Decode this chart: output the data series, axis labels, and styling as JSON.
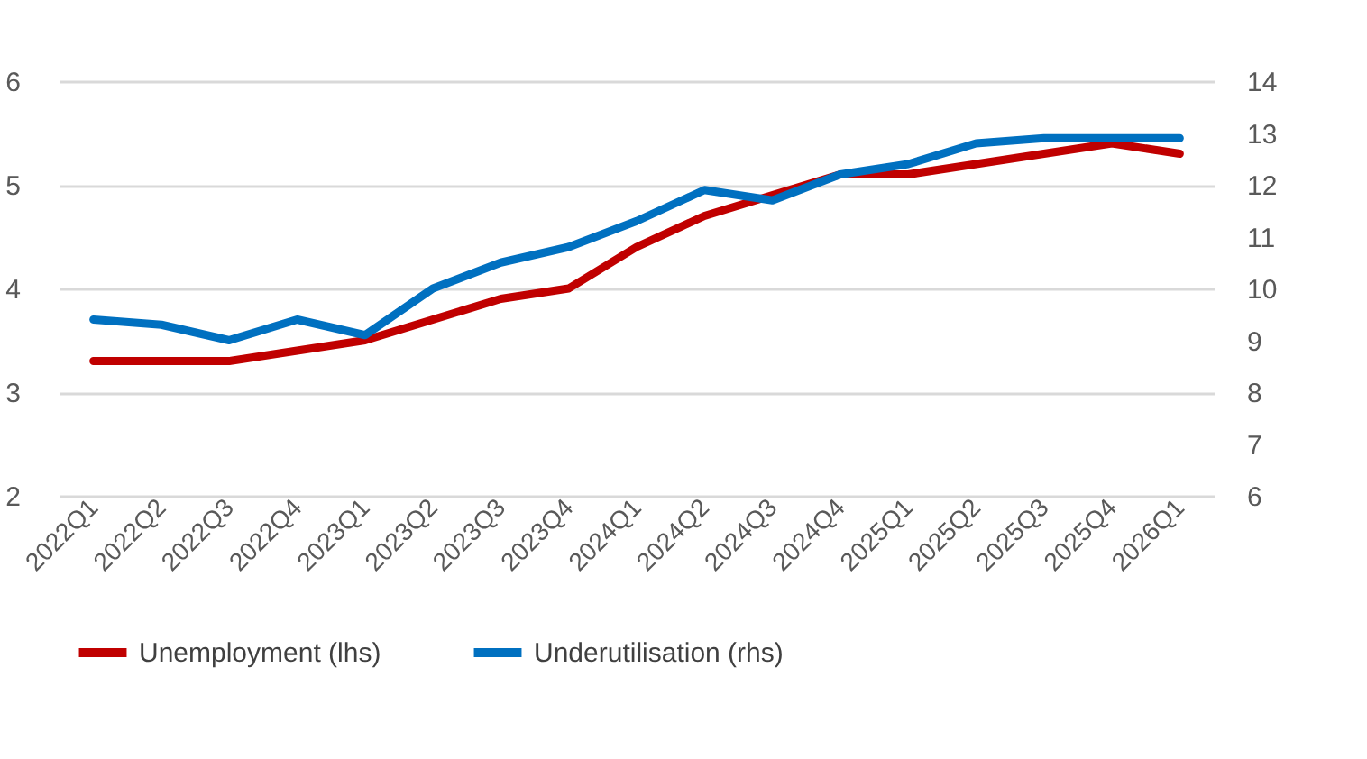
{
  "chart_data": {
    "type": "line",
    "categories": [
      "2022Q1",
      "2022Q2",
      "2022Q3",
      "2022Q4",
      "2023Q1",
      "2023Q2",
      "2023Q3",
      "2023Q4",
      "2024Q1",
      "2024Q2",
      "2024Q3",
      "2024Q4",
      "2025Q1",
      "2025Q2",
      "2025Q3",
      "2025Q4",
      "2026Q1"
    ],
    "series": [
      {
        "name": "Unemployment (lhs)",
        "color": "#c00000",
        "values": [
          3.3,
          3.3,
          3.3,
          3.4,
          3.5,
          3.7,
          3.9,
          4.0,
          4.4,
          4.7,
          4.9,
          5.1,
          5.1,
          5.2,
          5.3,
          5.4,
          5.3
        ]
      },
      {
        "name": "Underutilisation (rhs)",
        "color": "#0070c0",
        "axis": "y2",
        "values": [
          9.4,
          9.3,
          9.0,
          9.4,
          9.1,
          10.0,
          10.5,
          10.8,
          11.3,
          11.9,
          11.7,
          12.2,
          12.4,
          12.8,
          12.9,
          12.9,
          12.9
        ]
      }
    ],
    "ylim": [
      2,
      6
    ],
    "yticks": [
      2,
      3,
      4,
      5,
      6
    ],
    "y2lim": [
      6,
      14
    ],
    "y2ticks": [
      6,
      7,
      8,
      9,
      10,
      11,
      12,
      13,
      14
    ],
    "grid": "y",
    "legend": "bottom",
    "line_style": "solid",
    "marker": "none"
  }
}
